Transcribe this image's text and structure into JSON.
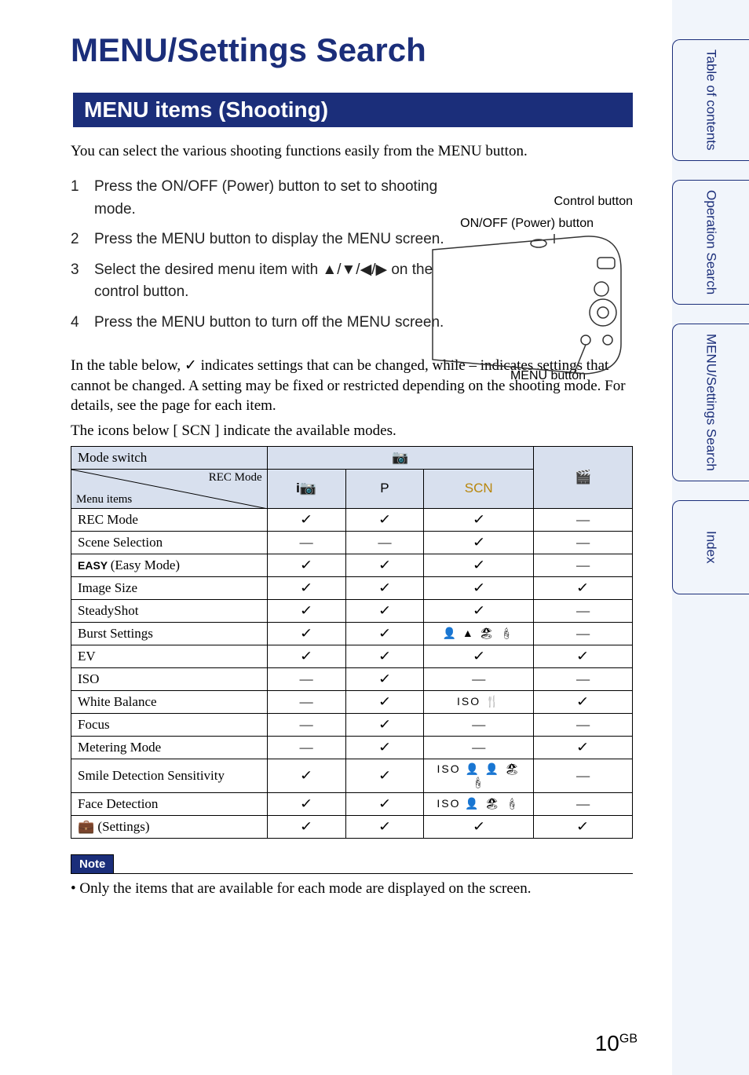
{
  "pageTitle": "MENU/Settings Search",
  "sectionHeader": "MENU items (Shooting)",
  "intro": "You can select the various shooting functions easily from the MENU button.",
  "steps": [
    "Press the ON/OFF (Power) button to set to shooting mode.",
    "Press the MENU button to display the MENU screen.",
    "Select the desired menu item with ▲/▼/◀/▶ on the control button.",
    "Press the MENU button to turn off the MENU screen."
  ],
  "cameraLabels": {
    "control": "Control button",
    "power": "ON/OFF (Power) button",
    "menu": "MENU button"
  },
  "tablePre1": "In the table below, ✓ indicates settings that can be changed, while – indicates settings that cannot be changed. A setting may be fixed or restricted depending on the shooting mode. For details, see the page for each item.",
  "tablePre2": "The icons below [ SCN ] indicate the available modes.",
  "table": {
    "diagTop": "REC Mode",
    "diagBot": "Menu items",
    "modeSwitch": "Mode switch",
    "cols": {
      "iauto": "i📷",
      "p": "P",
      "scn": "SCN",
      "movie": "🎬"
    },
    "rows": [
      {
        "label": "REC Mode",
        "v": [
          "check",
          "check",
          "check",
          "dash"
        ]
      },
      {
        "label": "Scene Selection",
        "v": [
          "dash",
          "dash",
          "check",
          "dash"
        ]
      },
      {
        "label": "EASY (Easy Mode)",
        "sans": true,
        "v": [
          "check",
          "check",
          "check",
          "dash"
        ]
      },
      {
        "label": "Image Size",
        "v": [
          "check",
          "check",
          "check",
          "check"
        ]
      },
      {
        "label": "SteadyShot",
        "v": [
          "check",
          "check",
          "check",
          "dash"
        ]
      },
      {
        "label": "Burst Settings",
        "v": [
          "check",
          "check",
          "icons1",
          "dash"
        ]
      },
      {
        "label": "EV",
        "v": [
          "check",
          "check",
          "check",
          "check"
        ]
      },
      {
        "label": "ISO",
        "v": [
          "dash",
          "check",
          "dash",
          "dash"
        ]
      },
      {
        "label": "White Balance",
        "v": [
          "dash",
          "check",
          "icons2",
          "check"
        ]
      },
      {
        "label": "Focus",
        "v": [
          "dash",
          "check",
          "dash",
          "dash"
        ]
      },
      {
        "label": "Metering Mode",
        "v": [
          "dash",
          "check",
          "dash",
          "check"
        ]
      },
      {
        "label": "Smile Detection Sensitivity",
        "v": [
          "check",
          "check",
          "icons3",
          "dash"
        ]
      },
      {
        "label": "Face Detection",
        "v": [
          "check",
          "check",
          "icons4",
          "dash"
        ]
      },
      {
        "label": "💼 (Settings)",
        "v": [
          "check",
          "check",
          "check",
          "check"
        ]
      }
    ],
    "iconCells": {
      "icons1": "👤 ▲ 🏖 🕯",
      "icons2": "ISO 🍴",
      "icons3": "ISO 👤 👤 🏖 🕯",
      "icons4": "ISO 👤 🏖 🕯"
    }
  },
  "noteTitle": "Note",
  "noteText": "• Only the items that are available for each mode are displayed on the screen.",
  "sideTabs": [
    "Table of contents",
    "Operation Search",
    "MENU/Settings Search",
    "Index"
  ],
  "pageNum": "10",
  "pageNumSuffix": "GB",
  "colors": {
    "brand": "#1b2e7a",
    "headerBg": "#d8e0ee",
    "pageBg": "#f1f5fb",
    "scnGold": "#b8860b"
  }
}
